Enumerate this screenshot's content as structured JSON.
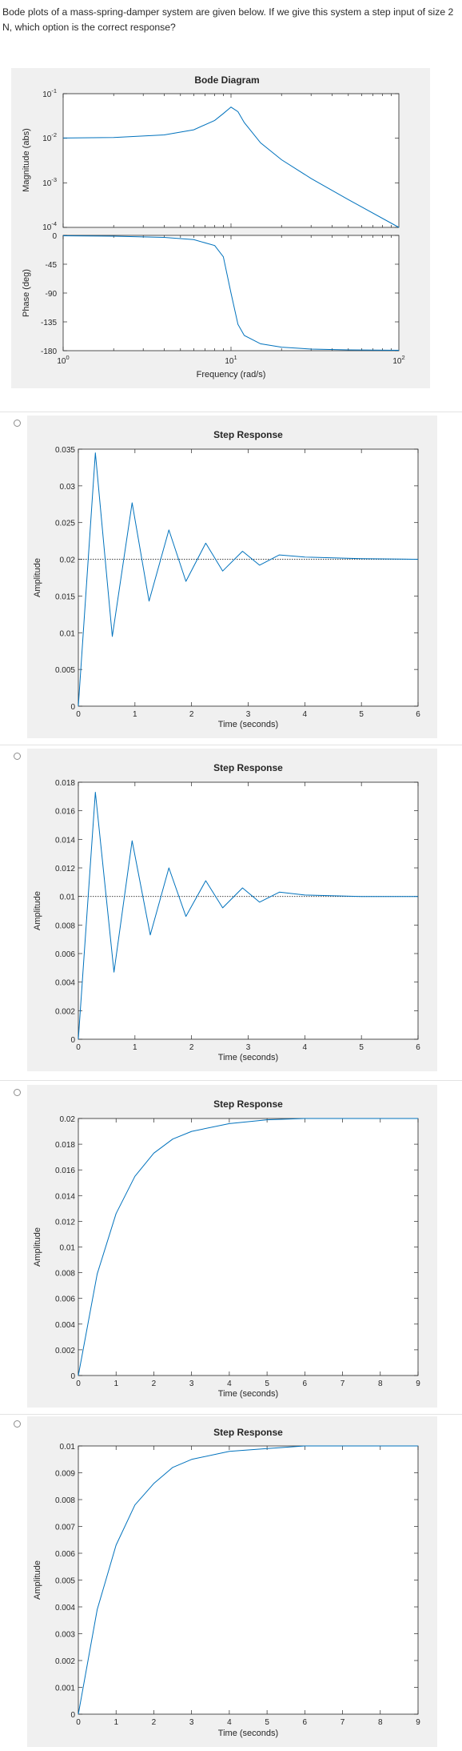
{
  "question": {
    "text": "Bode plots of a mass-spring-damper system are given below. If we give this system a step input of size 2 N, which option is the correct response?"
  },
  "bode": {
    "title": "Bode Diagram",
    "mag_ylabel": "Magnitude (abs)",
    "phase_ylabel": "Phase (deg)",
    "xlabel": "Frequency  (rad/s)",
    "mag_ticks": [
      {
        "base": "10",
        "exp": "-1"
      },
      {
        "base": "10",
        "exp": "-2"
      },
      {
        "base": "10",
        "exp": "-3"
      },
      {
        "base": "10",
        "exp": "-4"
      }
    ],
    "phase_ticks": [
      "0",
      "-45",
      "-90",
      "-135",
      "-180"
    ],
    "freq_ticks": [
      {
        "base": "10",
        "exp": "0"
      },
      {
        "base": "10",
        "exp": "1"
      },
      {
        "base": "10",
        "exp": "2"
      }
    ],
    "line_color": "#0072bd"
  },
  "options": [
    {
      "title": "Step Response",
      "xlabel": "Time (seconds)",
      "ylabel": "Amplitude",
      "yticks": [
        "0",
        "0.005",
        "0.01",
        "0.015",
        "0.02",
        "0.025",
        "0.03",
        "0.035"
      ],
      "xticks": [
        "0",
        "1",
        "2",
        "3",
        "4",
        "5",
        "6"
      ]
    },
    {
      "title": "Step Response",
      "xlabel": "Time (seconds)",
      "ylabel": "Amplitude",
      "yticks": [
        "0",
        "0.002",
        "0.004",
        "0.006",
        "0.008",
        "0.01",
        "0.012",
        "0.014",
        "0.016",
        "0.018"
      ],
      "xticks": [
        "0",
        "1",
        "2",
        "3",
        "4",
        "5",
        "6"
      ]
    },
    {
      "title": "Step Response",
      "xlabel": "Time (seconds)",
      "ylabel": "Amplitude",
      "yticks": [
        "0",
        "0.002",
        "0.004",
        "0.006",
        "0.008",
        "0.01",
        "0.012",
        "0.014",
        "0.016",
        "0.018",
        "0.02"
      ],
      "xticks": [
        "0",
        "1",
        "2",
        "3",
        "4",
        "5",
        "6",
        "7",
        "8",
        "9"
      ]
    },
    {
      "title": "Step Response",
      "xlabel": "Time (seconds)",
      "ylabel": "Amplitude",
      "yticks": [
        "0",
        "0.001",
        "0.002",
        "0.003",
        "0.004",
        "0.005",
        "0.006",
        "0.007",
        "0.008",
        "0.009",
        "0.01"
      ],
      "xticks": [
        "0",
        "1",
        "2",
        "3",
        "4",
        "5",
        "6",
        "7",
        "8",
        "9"
      ]
    }
  ],
  "chart_data": [
    {
      "type": "line",
      "title": "Bode Diagram",
      "panel": "magnitude",
      "xscale": "log",
      "yscale": "log",
      "xlabel": "Frequency  (rad/s)",
      "ylabel": "Magnitude (abs)",
      "xlim": [
        1,
        100
      ],
      "ylim": [
        0.0001,
        0.1
      ],
      "x": [
        1,
        2,
        4,
        6,
        8,
        9,
        10,
        11,
        12,
        15,
        20,
        30,
        50,
        100
      ],
      "y": [
        0.0101,
        0.0104,
        0.0119,
        0.0155,
        0.0251,
        0.0358,
        0.05,
        0.0394,
        0.0225,
        0.0079,
        0.0033,
        0.00125,
        0.00042,
        0.0001
      ],
      "grid": false
    },
    {
      "type": "line",
      "title": "Bode Diagram",
      "panel": "phase",
      "xscale": "log",
      "xlabel": "Frequency  (rad/s)",
      "ylabel": "Phase (deg)",
      "xlim": [
        1,
        100
      ],
      "ylim": [
        -180,
        0
      ],
      "x": [
        1,
        2,
        4,
        6,
        8,
        9,
        10,
        11,
        12,
        15,
        20,
        30,
        50,
        100
      ],
      "y": [
        -0.6,
        -1.2,
        -3.1,
        -6.6,
        -15.9,
        -33.4,
        -90,
        -138.9,
        -156.3,
        -169.3,
        -174.5,
        -177.5,
        -178.8,
        -179.4
      ],
      "grid": false
    },
    {
      "type": "line",
      "title": "Step Response",
      "xlabel": "Time (seconds)",
      "ylabel": "Amplitude",
      "xlim": [
        0,
        6
      ],
      "ylim": [
        0,
        0.035
      ],
      "x": [
        0,
        0.3,
        0.6,
        0.95,
        1.25,
        1.6,
        1.9,
        2.25,
        2.55,
        2.9,
        3.2,
        3.55,
        4,
        5,
        6
      ],
      "y": [
        0,
        0.0345,
        0.0095,
        0.0277,
        0.0143,
        0.024,
        0.017,
        0.0222,
        0.0184,
        0.0211,
        0.0192,
        0.0206,
        0.0203,
        0.0201,
        0.02
      ],
      "reference_line": 0.02,
      "grid": false
    },
    {
      "type": "line",
      "title": "Step Response",
      "xlabel": "Time (seconds)",
      "ylabel": "Amplitude",
      "xlim": [
        0,
        6
      ],
      "ylim": [
        0,
        0.018
      ],
      "x": [
        0,
        0.3,
        0.63,
        0.95,
        1.27,
        1.6,
        1.9,
        2.25,
        2.55,
        2.9,
        3.2,
        3.55,
        4,
        5,
        6
      ],
      "y": [
        0,
        0.0173,
        0.0047,
        0.0139,
        0.0073,
        0.012,
        0.0086,
        0.0111,
        0.0092,
        0.0106,
        0.0096,
        0.0103,
        0.0101,
        0.01,
        0.01
      ],
      "reference_line": 0.01,
      "grid": false
    },
    {
      "type": "line",
      "title": "Step Response",
      "xlabel": "Time (seconds)",
      "ylabel": "Amplitude",
      "xlim": [
        0,
        9
      ],
      "ylim": [
        0,
        0.02
      ],
      "x": [
        0,
        0.5,
        1,
        1.5,
        2,
        2.5,
        3,
        4,
        5,
        6,
        7,
        8,
        9
      ],
      "y": [
        0,
        0.0079,
        0.0126,
        0.0155,
        0.0173,
        0.0184,
        0.019,
        0.0196,
        0.0199,
        0.02,
        0.02,
        0.02,
        0.02
      ],
      "grid": false
    },
    {
      "type": "line",
      "title": "Step Response",
      "xlabel": "Time (seconds)",
      "ylabel": "Amplitude",
      "xlim": [
        0,
        9
      ],
      "ylim": [
        0,
        0.01
      ],
      "x": [
        0,
        0.5,
        1,
        1.5,
        2,
        2.5,
        3,
        4,
        5,
        6,
        7,
        8,
        9
      ],
      "y": [
        0,
        0.0039,
        0.0063,
        0.0078,
        0.0086,
        0.0092,
        0.0095,
        0.0098,
        0.0099,
        0.01,
        0.01,
        0.01,
        0.01
      ],
      "grid": false
    }
  ]
}
